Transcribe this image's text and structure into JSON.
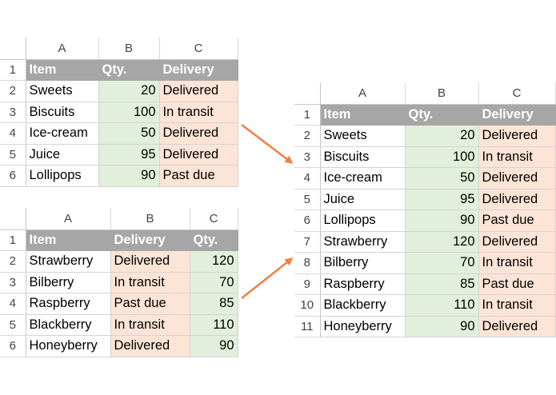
{
  "colors": {
    "header_bg": "#a6a6a6",
    "qty_fill": "#e2efda",
    "delivery_fill": "#fce4d6",
    "arrow": "#f08040"
  },
  "table1": {
    "col_letters": [
      "A",
      "B",
      "C"
    ],
    "headers": [
      "Item",
      "Qty.",
      "Delivery"
    ],
    "row_numbers": [
      "1",
      "2",
      "3",
      "4",
      "5",
      "6"
    ],
    "rows": [
      {
        "item": "Sweets",
        "qty": "20",
        "delivery": "Delivered"
      },
      {
        "item": "Biscuits",
        "qty": "100",
        "delivery": "In transit"
      },
      {
        "item": "Ice-cream",
        "qty": "50",
        "delivery": "Delivered"
      },
      {
        "item": "Juice",
        "qty": "95",
        "delivery": "Delivered"
      },
      {
        "item": "Lollipops",
        "qty": "90",
        "delivery": "Past due"
      }
    ]
  },
  "table2": {
    "col_letters": [
      "A",
      "B",
      "C"
    ],
    "headers": [
      "Item",
      "Delivery",
      "Qty."
    ],
    "row_numbers": [
      "1",
      "2",
      "3",
      "4",
      "5",
      "6"
    ],
    "rows": [
      {
        "item": "Strawberry",
        "delivery": "Delivered",
        "qty": "120"
      },
      {
        "item": "Bilberry",
        "delivery": "In transit",
        "qty": "70"
      },
      {
        "item": "Raspberry",
        "delivery": "Past due",
        "qty": "85"
      },
      {
        "item": "Blackberry",
        "delivery": "In transit",
        "qty": "110"
      },
      {
        "item": "Honeyberry",
        "delivery": "Delivered",
        "qty": "90"
      }
    ]
  },
  "table3": {
    "col_letters": [
      "A",
      "B",
      "C"
    ],
    "headers": [
      "Item",
      "Qty.",
      "Delivery"
    ],
    "row_numbers": [
      "1",
      "2",
      "3",
      "4",
      "5",
      "6",
      "7",
      "8",
      "9",
      "10",
      "11"
    ],
    "rows": [
      {
        "item": "Sweets",
        "qty": "20",
        "delivery": "Delivered"
      },
      {
        "item": "Biscuits",
        "qty": "100",
        "delivery": "In transit"
      },
      {
        "item": "Ice-cream",
        "qty": "50",
        "delivery": "Delivered"
      },
      {
        "item": "Juice",
        "qty": "95",
        "delivery": "Delivered"
      },
      {
        "item": "Lollipops",
        "qty": "90",
        "delivery": "Past due"
      },
      {
        "item": "Strawberry",
        "qty": "120",
        "delivery": "Delivered"
      },
      {
        "item": "Bilberry",
        "qty": "70",
        "delivery": "In transit"
      },
      {
        "item": "Raspberry",
        "qty": "85",
        "delivery": "Past due"
      },
      {
        "item": "Blackberry",
        "qty": "110",
        "delivery": "In transit"
      },
      {
        "item": "Honeyberry",
        "qty": "90",
        "delivery": "Delivered"
      }
    ]
  }
}
